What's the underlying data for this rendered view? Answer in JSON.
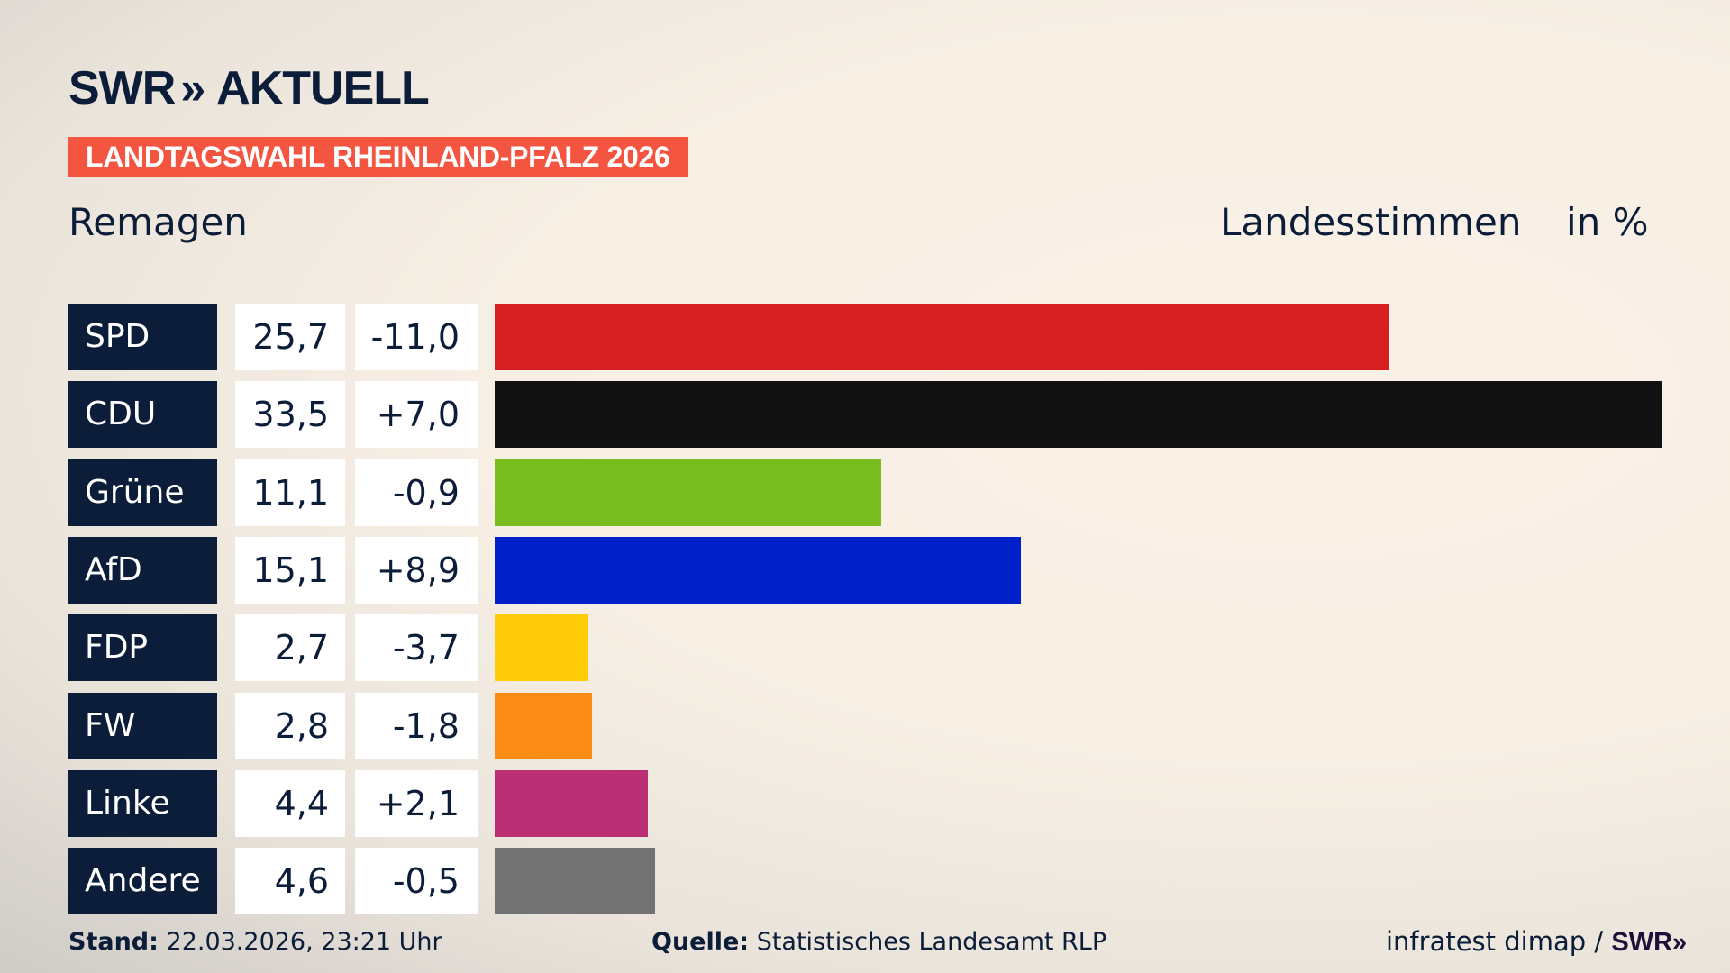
{
  "header": {
    "logo_text": "SWR",
    "logo_chevrons": "»",
    "logo_suffix": "AKTUELL",
    "banner": "LANDTAGSWAHL RHEINLAND-PFALZ 2026",
    "region": "Remagen",
    "measure": "Landesstimmen",
    "unit": "in %"
  },
  "chart_data": {
    "type": "bar",
    "orientation": "horizontal",
    "categories": [
      "SPD",
      "CDU",
      "Grüne",
      "AfD",
      "FDP",
      "FW",
      "Linke",
      "Andere"
    ],
    "values": [
      25.7,
      33.5,
      11.1,
      15.1,
      2.7,
      2.8,
      4.4,
      4.6
    ],
    "value_labels": [
      "25,7",
      "33,5",
      "11,1",
      "15,1",
      "2,7",
      "2,8",
      "4,4",
      "4,6"
    ],
    "change_labels": [
      "-11,0",
      "+7,0",
      "-0,9",
      "+8,9",
      "-3,7",
      "-1,8",
      "+2,1",
      "-0,5"
    ],
    "changes": [
      -11.0,
      7.0,
      -0.9,
      8.9,
      -3.7,
      -1.8,
      2.1,
      -0.5
    ],
    "colors": [
      "#d71f22",
      "#121212",
      "#79bc1d",
      "#0020c8",
      "#ffcc09",
      "#fd8c17",
      "#bb2f75",
      "#727272"
    ],
    "xlim": [
      0,
      33.5
    ],
    "grid": false,
    "legend": "none"
  },
  "footer": {
    "stand_label": "Stand:",
    "stand_value": "22.03.2026, 23:21 Uhr",
    "source_label": "Quelle:",
    "source_value": "Statistisches Landesamt RLP",
    "credit": "infratest dimap /",
    "credit_logo": "SWR»"
  }
}
